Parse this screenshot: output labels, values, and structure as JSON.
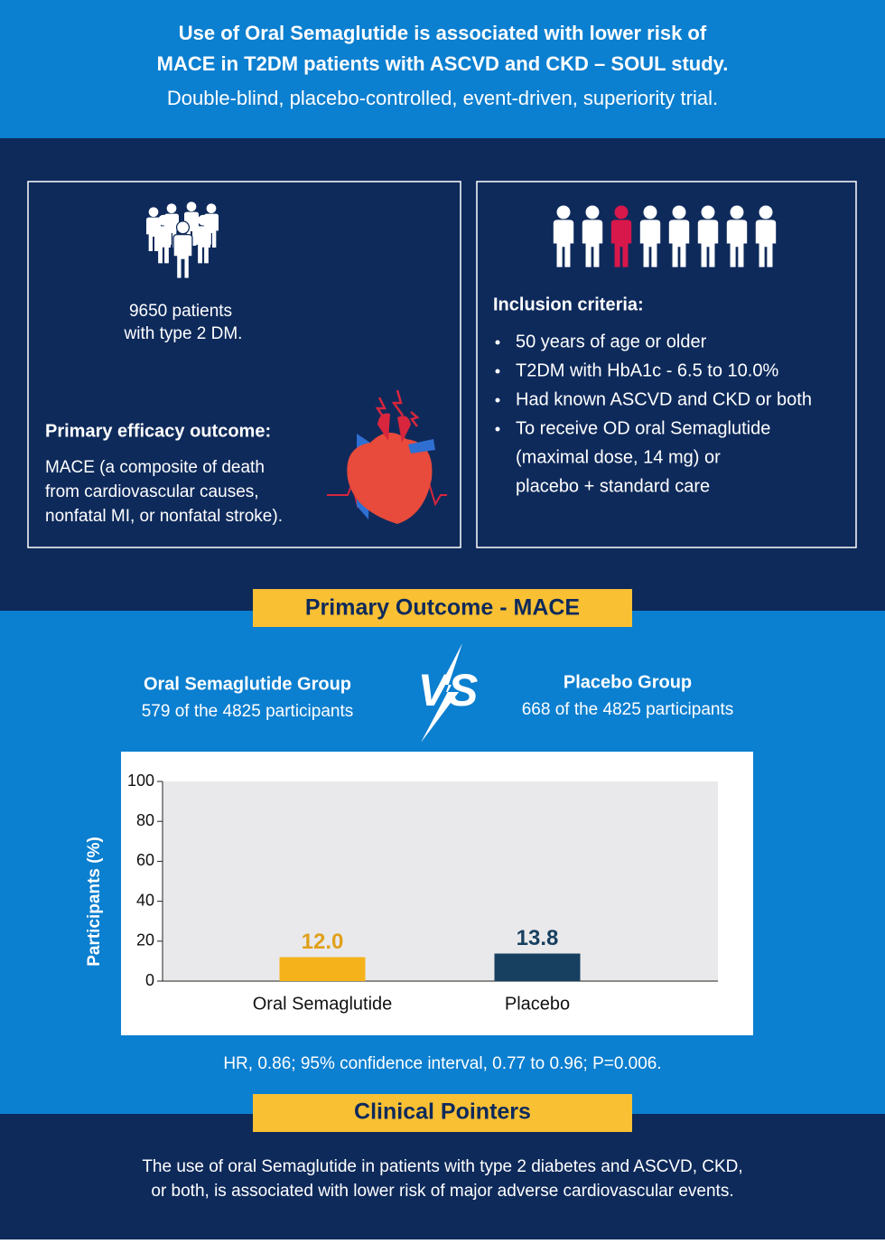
{
  "header": {
    "title_lines": [
      "Use of Oral Semaglutide is associated with lower risk of",
      "MACE in T2DM patients with ASCVD and CKD – SOUL study."
    ],
    "subtitle": "Double-blind, placebo-controlled, event-driven, superiority trial."
  },
  "study": {
    "patient_lines": [
      "9650 patients",
      "with type 2 DM."
    ],
    "outcome_heading": "Primary efficacy outcome:",
    "outcome_lines": [
      "MACE (a composite of death",
      "from cardiovascular causes,",
      "nonfatal MI, or nonfatal stroke)."
    ]
  },
  "inclusion": {
    "heading": "Inclusion criteria:",
    "items": [
      [
        "50 years of age or older"
      ],
      [
        "T2DM with HbA1c - 6.5 to 10.0%"
      ],
      [
        "Had known ASCVD and CKD or both"
      ],
      [
        "To receive OD oral Semaglutide",
        "(maximal dose, 14 mg) or",
        "placebo + standard care"
      ]
    ]
  },
  "primary_outcome_label": "Primary Outcome - MACE",
  "groups": [
    {
      "name": "Oral Semaglutide Group",
      "detail": "579 of the 4825 participants"
    },
    {
      "name": "Placebo Group",
      "detail": "668 of the 4825 participants"
    }
  ],
  "vs": "VS",
  "chart_data": {
    "type": "bar",
    "categories": [
      "Oral Semaglutide",
      "Placebo"
    ],
    "values": [
      12.0,
      13.8
    ],
    "value_labels": [
      "12.0",
      "13.8"
    ],
    "colors": [
      "#f5b21b",
      "#173f5f"
    ],
    "label_colors": [
      "#e0a01a",
      "#173f5f"
    ],
    "ylabel": "Participants (%)",
    "ylim": [
      0,
      100
    ],
    "yticks": [
      0,
      20,
      40,
      60,
      80,
      100
    ],
    "grid": false
  },
  "hr_note": "HR, 0.86; 95% confidence interval, 0.77 to 0.96; P=0.006.",
  "pointers": {
    "heading": "Clinical Pointers",
    "lines": [
      "The use of oral Semaglutide in patients with type 2 diabetes and ASCVD, CKD,",
      "or both, is associated with lower risk of major adverse cardiovascular events."
    ]
  }
}
